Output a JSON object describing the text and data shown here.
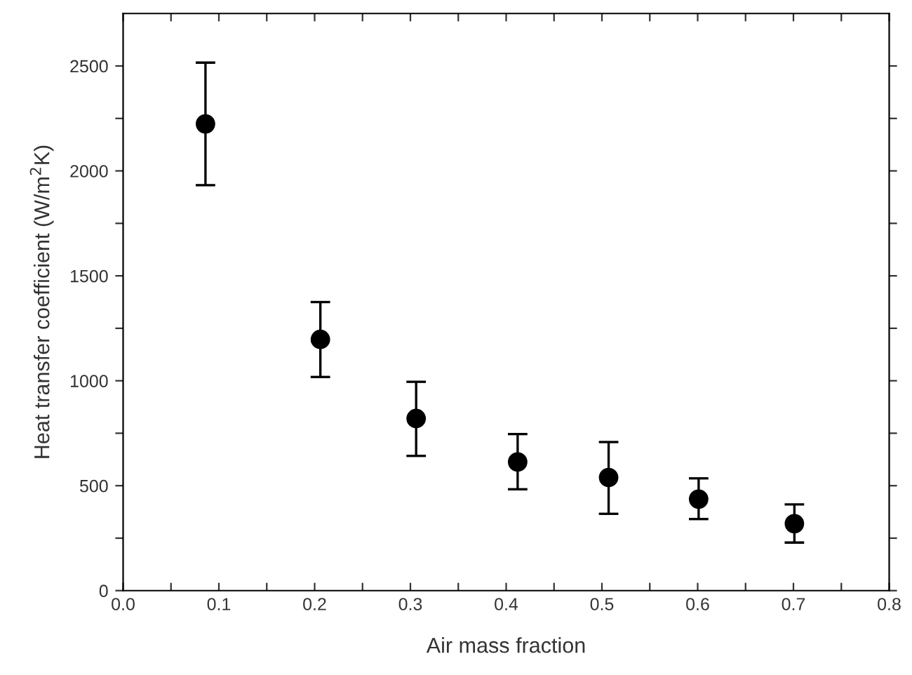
{
  "chart_data": {
    "type": "scatter",
    "xlabel": "Air mass fraction",
    "ylabel": "Heat transfer coefficient (W/m$^{2}$K)",
    "x": [
      0.086,
      0.206,
      0.306,
      0.412,
      0.507,
      0.601,
      0.701
    ],
    "series": [
      {
        "color": "#000000",
        "values": [
          2224,
          1197,
          820,
          613,
          539,
          436,
          319
        ],
        "errors": [
          [
            1932,
            2516
          ],
          [
            1018,
            1375
          ],
          [
            642,
            995
          ],
          [
            483,
            746
          ],
          [
            366,
            708
          ],
          [
            341,
            535
          ],
          [
            229,
            411
          ]
        ]
      }
    ],
    "marker": "circle",
    "grid": false,
    "legend": false,
    "xlim": [
      0.0,
      0.8
    ],
    "ylim": [
      0,
      2750
    ],
    "xticks": [
      {
        "value": 0,
        "label": "0.0"
      },
      {
        "value": 0.05,
        "label": null
      },
      0.1,
      {
        "value": 0.15,
        "label": null
      },
      0.2,
      {
        "value": 0.25,
        "label": null
      },
      0.3,
      {
        "value": 0.35,
        "label": null
      },
      0.4,
      {
        "value": 0.45,
        "label": null
      },
      0.5,
      {
        "value": 0.55,
        "label": null
      },
      0.6,
      {
        "value": 0.65,
        "label": null
      },
      0.7,
      {
        "value": 0.75,
        "label": null
      },
      0.8
    ],
    "yticks": [
      0,
      {
        "value": 250,
        "label": null
      },
      500,
      {
        "value": 750,
        "label": null
      },
      1000,
      {
        "value": 1250,
        "label": null
      },
      1500,
      {
        "value": 1750,
        "label": null
      },
      2000,
      {
        "value": 2250,
        "label": null
      },
      2500
    ]
  }
}
